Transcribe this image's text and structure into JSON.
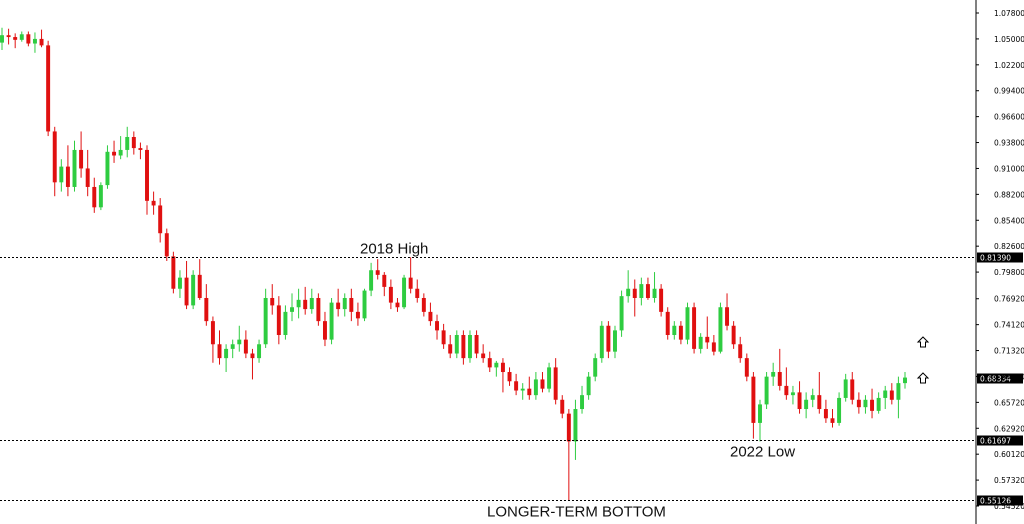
{
  "chart_data": {
    "type": "candlestick",
    "colors": {
      "up": "#2ecc40",
      "down": "#e01010",
      "level_line": "#000000",
      "axis": "#000000"
    },
    "y_axis_ticks": [
      "1.07800",
      "1.05000",
      "1.02200",
      "0.99400",
      "0.96600",
      "0.93800",
      "0.91000",
      "0.88200",
      "0.85400",
      "0.82600",
      "0.79800",
      "0.76920",
      "0.74120",
      "0.71320",
      "0.68520",
      "0.65720",
      "0.62920",
      "0.60120",
      "0.57320",
      "0.54520"
    ],
    "ylim": [
      0.5452,
      1.078
    ],
    "levels": [
      {
        "value": 0.8139,
        "label": "0.81390",
        "annotation": "2018 High"
      },
      {
        "value": 0.61697,
        "label": "0.61697",
        "annotation": "2022 Low"
      },
      {
        "value": 0.55126,
        "label": "0.55126",
        "annotation": "LONGER-TERM BOTTOM"
      }
    ],
    "current_price": {
      "value": 0.68334,
      "label": "0.68334"
    },
    "candles": [
      [
        1.046,
        1.062,
        1.038,
        1.054
      ],
      [
        1.054,
        1.061,
        1.044,
        1.052
      ],
      [
        1.052,
        1.056,
        1.04,
        1.049
      ],
      [
        1.049,
        1.058,
        1.047,
        1.055
      ],
      [
        1.055,
        1.058,
        1.042,
        1.045
      ],
      [
        1.045,
        1.057,
        1.035,
        1.05
      ],
      [
        1.05,
        1.06,
        1.041,
        1.043
      ],
      [
        1.043,
        1.048,
        0.945,
        0.95
      ],
      [
        0.95,
        0.955,
        0.88,
        0.895
      ],
      [
        0.895,
        0.92,
        0.885,
        0.912
      ],
      [
        0.912,
        0.935,
        0.88,
        0.89
      ],
      [
        0.89,
        0.94,
        0.885,
        0.93
      ],
      [
        0.93,
        0.95,
        0.9,
        0.91
      ],
      [
        0.91,
        0.93,
        0.88,
        0.89
      ],
      [
        0.89,
        0.9,
        0.862,
        0.868
      ],
      [
        0.868,
        0.895,
        0.865,
        0.892
      ],
      [
        0.892,
        0.935,
        0.888,
        0.928
      ],
      [
        0.928,
        0.94,
        0.916,
        0.924
      ],
      [
        0.924,
        0.945,
        0.92,
        0.93
      ],
      [
        0.93,
        0.955,
        0.922,
        0.944
      ],
      [
        0.944,
        0.95,
        0.925,
        0.932
      ],
      [
        0.932,
        0.938,
        0.92,
        0.93
      ],
      [
        0.93,
        0.935,
        0.86,
        0.875
      ],
      [
        0.875,
        0.885,
        0.86,
        0.87
      ],
      [
        0.87,
        0.878,
        0.83,
        0.84
      ],
      [
        0.84,
        0.845,
        0.81,
        0.815
      ],
      [
        0.815,
        0.82,
        0.775,
        0.78
      ],
      [
        0.78,
        0.8,
        0.77,
        0.792
      ],
      [
        0.792,
        0.81,
        0.758,
        0.762
      ],
      [
        0.762,
        0.8,
        0.758,
        0.795
      ],
      [
        0.795,
        0.812,
        0.768,
        0.77
      ],
      [
        0.77,
        0.785,
        0.74,
        0.745
      ],
      [
        0.745,
        0.75,
        0.7,
        0.72
      ],
      [
        0.72,
        0.735,
        0.698,
        0.705
      ],
      [
        0.705,
        0.72,
        0.69,
        0.715
      ],
      [
        0.715,
        0.725,
        0.705,
        0.72
      ],
      [
        0.72,
        0.74,
        0.712,
        0.725
      ],
      [
        0.725,
        0.735,
        0.705,
        0.71
      ],
      [
        0.71,
        0.715,
        0.682,
        0.705
      ],
      [
        0.705,
        0.725,
        0.7,
        0.72
      ],
      [
        0.72,
        0.78,
        0.716,
        0.77
      ],
      [
        0.77,
        0.785,
        0.752,
        0.762
      ],
      [
        0.762,
        0.772,
        0.72,
        0.73
      ],
      [
        0.73,
        0.762,
        0.725,
        0.755
      ],
      [
        0.755,
        0.775,
        0.745,
        0.76
      ],
      [
        0.76,
        0.78,
        0.748,
        0.768
      ],
      [
        0.768,
        0.782,
        0.752,
        0.758
      ],
      [
        0.758,
        0.78,
        0.753,
        0.77
      ],
      [
        0.77,
        0.775,
        0.74,
        0.745
      ],
      [
        0.745,
        0.755,
        0.718,
        0.725
      ],
      [
        0.725,
        0.77,
        0.72,
        0.765
      ],
      [
        0.765,
        0.78,
        0.75,
        0.758
      ],
      [
        0.758,
        0.775,
        0.75,
        0.77
      ],
      [
        0.77,
        0.78,
        0.745,
        0.755
      ],
      [
        0.755,
        0.765,
        0.74,
        0.748
      ],
      [
        0.748,
        0.78,
        0.745,
        0.778
      ],
      [
        0.778,
        0.808,
        0.772,
        0.8
      ],
      [
        0.8,
        0.812,
        0.79,
        0.795
      ],
      [
        0.795,
        0.798,
        0.772,
        0.782
      ],
      [
        0.782,
        0.79,
        0.758,
        0.765
      ],
      [
        0.765,
        0.77,
        0.755,
        0.76
      ],
      [
        0.76,
        0.795,
        0.758,
        0.792
      ],
      [
        0.792,
        0.814,
        0.775,
        0.78
      ],
      [
        0.78,
        0.79,
        0.765,
        0.77
      ],
      [
        0.77,
        0.775,
        0.75,
        0.755
      ],
      [
        0.755,
        0.765,
        0.74,
        0.745
      ],
      [
        0.745,
        0.752,
        0.725,
        0.735
      ],
      [
        0.735,
        0.742,
        0.715,
        0.72
      ],
      [
        0.72,
        0.73,
        0.705,
        0.71
      ],
      [
        0.71,
        0.735,
        0.705,
        0.73
      ],
      [
        0.73,
        0.735,
        0.698,
        0.705
      ],
      [
        0.705,
        0.735,
        0.7,
        0.73
      ],
      [
        0.73,
        0.735,
        0.705,
        0.71
      ],
      [
        0.71,
        0.72,
        0.7,
        0.705
      ],
      [
        0.705,
        0.712,
        0.69,
        0.695
      ],
      [
        0.695,
        0.702,
        0.685,
        0.7
      ],
      [
        0.7,
        0.705,
        0.668,
        0.69
      ],
      [
        0.69,
        0.695,
        0.675,
        0.68
      ],
      [
        0.68,
        0.688,
        0.665,
        0.67
      ],
      [
        0.67,
        0.678,
        0.66,
        0.672
      ],
      [
        0.672,
        0.685,
        0.66,
        0.665
      ],
      [
        0.665,
        0.69,
        0.66,
        0.682
      ],
      [
        0.682,
        0.69,
        0.668,
        0.672
      ],
      [
        0.672,
        0.7,
        0.668,
        0.695
      ],
      [
        0.695,
        0.705,
        0.655,
        0.66
      ],
      [
        0.66,
        0.665,
        0.64,
        0.645
      ],
      [
        0.645,
        0.65,
        0.551,
        0.615
      ],
      [
        0.615,
        0.66,
        0.595,
        0.65
      ],
      [
        0.65,
        0.675,
        0.645,
        0.665
      ],
      [
        0.665,
        0.69,
        0.66,
        0.685
      ],
      [
        0.685,
        0.71,
        0.68,
        0.705
      ],
      [
        0.705,
        0.745,
        0.7,
        0.74
      ],
      [
        0.74,
        0.745,
        0.705,
        0.712
      ],
      [
        0.712,
        0.74,
        0.705,
        0.735
      ],
      [
        0.735,
        0.778,
        0.728,
        0.772
      ],
      [
        0.772,
        0.8,
        0.765,
        0.78
      ],
      [
        0.78,
        0.79,
        0.75,
        0.77
      ],
      [
        0.77,
        0.792,
        0.762,
        0.785
      ],
      [
        0.785,
        0.792,
        0.768,
        0.77
      ],
      [
        0.77,
        0.798,
        0.765,
        0.78
      ],
      [
        0.78,
        0.785,
        0.75,
        0.755
      ],
      [
        0.755,
        0.76,
        0.725,
        0.73
      ],
      [
        0.73,
        0.745,
        0.725,
        0.74
      ],
      [
        0.74,
        0.745,
        0.72,
        0.725
      ],
      [
        0.725,
        0.765,
        0.72,
        0.76
      ],
      [
        0.76,
        0.765,
        0.71,
        0.715
      ],
      [
        0.715,
        0.732,
        0.71,
        0.728
      ],
      [
        0.728,
        0.75,
        0.715,
        0.722
      ],
      [
        0.722,
        0.73,
        0.708,
        0.712
      ],
      [
        0.712,
        0.765,
        0.71,
        0.76
      ],
      [
        0.76,
        0.775,
        0.735,
        0.74
      ],
      [
        0.74,
        0.745,
        0.715,
        0.72
      ],
      [
        0.72,
        0.728,
        0.7,
        0.705
      ],
      [
        0.705,
        0.71,
        0.68,
        0.685
      ],
      [
        0.685,
        0.69,
        0.618,
        0.635
      ],
      [
        0.635,
        0.66,
        0.615,
        0.655
      ],
      [
        0.655,
        0.69,
        0.65,
        0.685
      ],
      [
        0.685,
        0.7,
        0.675,
        0.69
      ],
      [
        0.69,
        0.715,
        0.67,
        0.675
      ],
      [
        0.675,
        0.695,
        0.66,
        0.665
      ],
      [
        0.665,
        0.675,
        0.655,
        0.668
      ],
      [
        0.668,
        0.68,
        0.645,
        0.65
      ],
      [
        0.65,
        0.668,
        0.64,
        0.66
      ],
      [
        0.66,
        0.672,
        0.652,
        0.665
      ],
      [
        0.665,
        0.69,
        0.645,
        0.65
      ],
      [
        0.65,
        0.66,
        0.635,
        0.64
      ],
      [
        0.64,
        0.65,
        0.63,
        0.635
      ],
      [
        0.635,
        0.668,
        0.632,
        0.662
      ],
      [
        0.662,
        0.688,
        0.658,
        0.682
      ],
      [
        0.682,
        0.69,
        0.655,
        0.66
      ],
      [
        0.66,
        0.668,
        0.645,
        0.652
      ],
      [
        0.652,
        0.665,
        0.645,
        0.66
      ],
      [
        0.66,
        0.672,
        0.64,
        0.648
      ],
      [
        0.648,
        0.668,
        0.645,
        0.662
      ],
      [
        0.662,
        0.675,
        0.65,
        0.67
      ],
      [
        0.67,
        0.678,
        0.655,
        0.66
      ],
      [
        0.66,
        0.685,
        0.64,
        0.678
      ],
      [
        0.678,
        0.69,
        0.672,
        0.684
      ]
    ]
  }
}
